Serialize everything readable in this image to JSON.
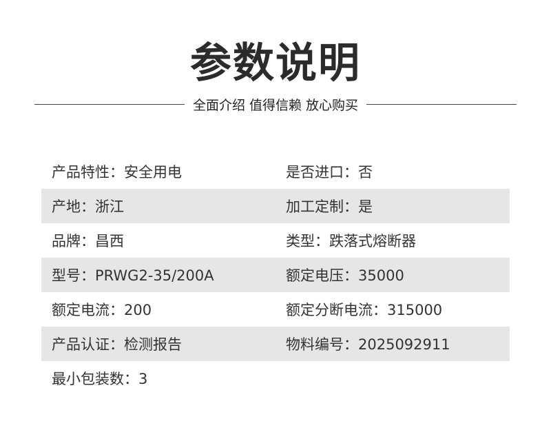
{
  "header": {
    "title": "参数说明",
    "subtitle": "全面介绍 值得信赖 放心购买"
  },
  "rows": [
    {
      "left": "产品特性：安全用电",
      "right": "是否进口：否"
    },
    {
      "left": "产地：浙江",
      "right": "加工定制：是"
    },
    {
      "left": "品牌：昌西",
      "right": "类型：跌落式熔断器"
    },
    {
      "left": "型号：PRWG2-35/200A",
      "right": "额定电压：35000"
    },
    {
      "left": "额定电流：200",
      "right": "额定分断电流：315000"
    },
    {
      "left": "产品认证：检测报告",
      "right": "物料编号：2025092911"
    },
    {
      "left": "最小包装数：3",
      "right": ""
    }
  ],
  "colors": {
    "stripe": "#e6e6e6",
    "text": "#333333"
  }
}
